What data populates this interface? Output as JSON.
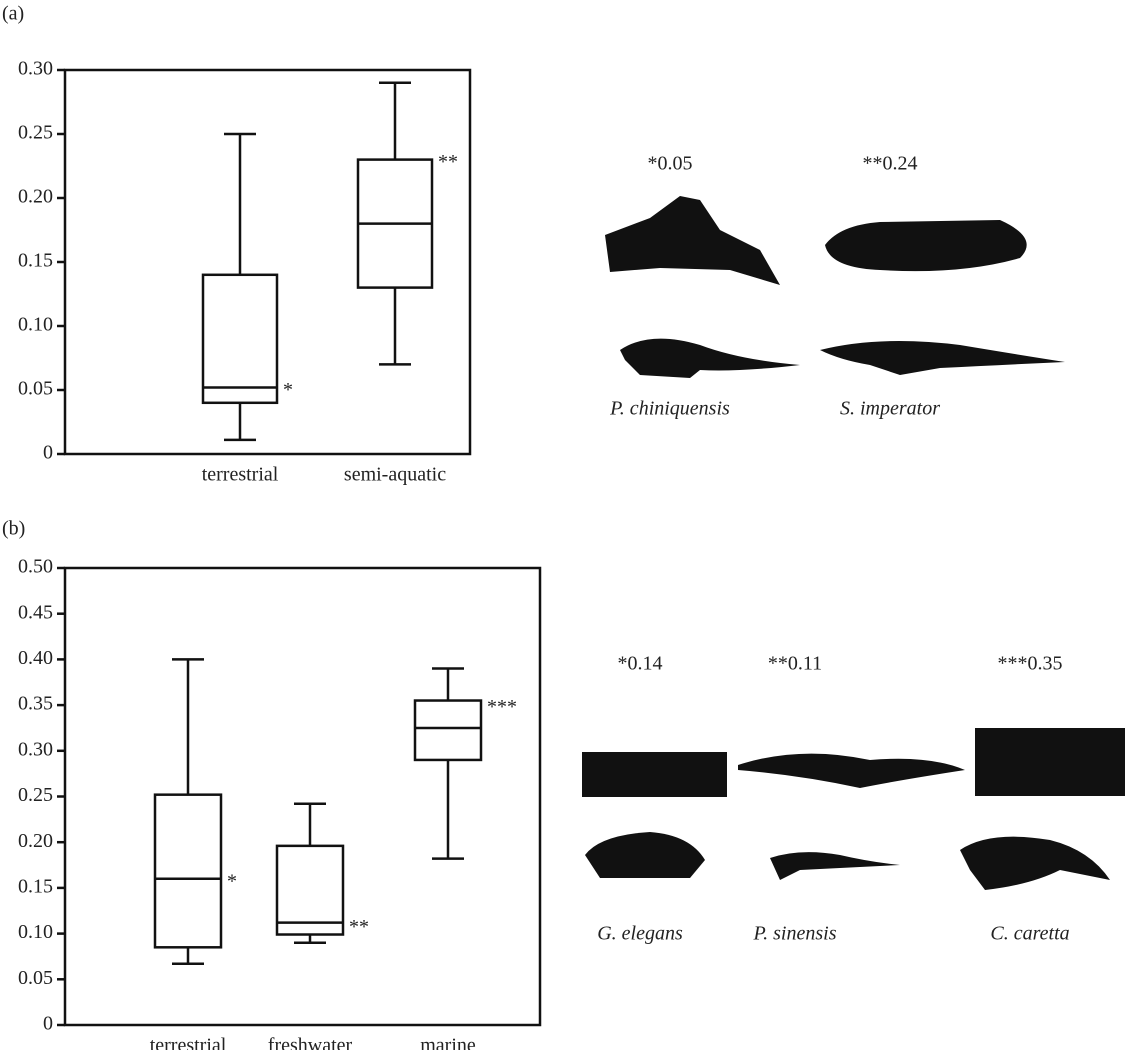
{
  "chart_data": [
    {
      "type": "box",
      "panel": "(a)",
      "categories": [
        "terrestrial",
        "semi-aquatic"
      ],
      "boxes": [
        {
          "min": 0.011,
          "q1": 0.04,
          "median": 0.052,
          "q3": 0.14,
          "max": 0.25
        },
        {
          "min": 0.07,
          "q1": 0.13,
          "median": 0.18,
          "q3": 0.23,
          "max": 0.29
        }
      ],
      "annotations": [
        "*",
        "**"
      ],
      "ylim": [
        0,
        0.3
      ],
      "yticks": [
        0,
        0.05,
        {
          "value": 0.1,
          "label": "0.10"
        },
        0.15,
        {
          "value": 0.2,
          "label": "0.20"
        },
        0.25,
        {
          "value": 0.3,
          "label": "0.30"
        }
      ],
      "specimens": [
        {
          "label": "*0.05",
          "species": "P. chiniquensis"
        },
        {
          "label": "**0.24",
          "species": "S. imperator"
        }
      ]
    },
    {
      "type": "box",
      "panel": "(b)",
      "categories": [
        "terrestrial",
        "freshwater",
        "marine"
      ],
      "boxes": [
        {
          "min": 0.067,
          "q1": 0.085,
          "median": 0.16,
          "q3": 0.252,
          "max": 0.4
        },
        {
          "min": 0.09,
          "q1": 0.099,
          "median": 0.112,
          "q3": 0.196,
          "max": 0.242
        },
        {
          "min": 0.182,
          "q1": 0.29,
          "median": 0.325,
          "q3": 0.355,
          "max": 0.39
        }
      ],
      "annotations": [
        "*",
        "**",
        "***"
      ],
      "ylim": [
        0,
        0.5
      ],
      "yticks": [
        0,
        0.05,
        {
          "value": 0.1,
          "label": "0.10"
        },
        0.15,
        {
          "value": 0.2,
          "label": "0.20"
        },
        0.25,
        {
          "value": 0.3,
          "label": "0.30"
        },
        0.35,
        {
          "value": 0.4,
          "label": "0.40"
        },
        0.45,
        {
          "value": 0.5,
          "label": "0.50"
        }
      ],
      "specimens": [
        {
          "label": "*0.14",
          "species": "G. elegans"
        },
        {
          "label": "**0.11",
          "species": "P. sinensis"
        },
        {
          "label": "***0.35",
          "species": "C. caretta"
        }
      ]
    }
  ]
}
